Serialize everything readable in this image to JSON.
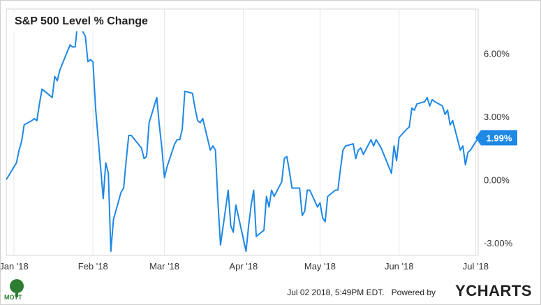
{
  "chart_data": {
    "type": "line",
    "title": "S&P 500 Level % Change",
    "ytick_labels": [
      "6.00%",
      "3.00%",
      "0.00%",
      "-3.00%"
    ],
    "yticks": [
      6,
      3,
      0,
      -3
    ],
    "ylim": [
      -3.6,
      8.1
    ],
    "xtick_labels": [
      "Jan '18",
      "Feb '18",
      "Mar '18",
      "Apr '18",
      "May '18",
      "Jun '18",
      "Jul '18"
    ],
    "xticks": [
      "2018-01-01",
      "2018-02-01",
      "2018-03-01",
      "2018-04-01",
      "2018-05-01",
      "2018-06-01",
      "2018-07-01"
    ],
    "x_range": [
      "2017-12-29",
      "2018-07-02"
    ],
    "last_value_label": "1.99%",
    "line_color": "#1e88e5",
    "grid": "vertical",
    "series": [
      {
        "points": [
          [
            "2017-12-29",
            0.0
          ],
          [
            "2018-01-02",
            0.8
          ],
          [
            "2018-01-03",
            1.4
          ],
          [
            "2018-01-04",
            1.8
          ],
          [
            "2018-01-05",
            2.6
          ],
          [
            "2018-01-08",
            2.8
          ],
          [
            "2018-01-09",
            2.9
          ],
          [
            "2018-01-10",
            2.8
          ],
          [
            "2018-01-11",
            3.6
          ],
          [
            "2018-01-12",
            4.3
          ],
          [
            "2018-01-16",
            3.9
          ],
          [
            "2018-01-17",
            4.9
          ],
          [
            "2018-01-18",
            4.7
          ],
          [
            "2018-01-19",
            5.2
          ],
          [
            "2018-01-22",
            6.1
          ],
          [
            "2018-01-23",
            6.4
          ],
          [
            "2018-01-24",
            6.3
          ],
          [
            "2018-01-25",
            6.3
          ],
          [
            "2018-01-26",
            7.5
          ],
          [
            "2018-01-29",
            6.8
          ],
          [
            "2018-01-30",
            5.6
          ],
          [
            "2018-01-31",
            5.7
          ],
          [
            "2018-02-01",
            5.6
          ],
          [
            "2018-02-02",
            3.4
          ],
          [
            "2018-02-05",
            -0.9
          ],
          [
            "2018-02-06",
            0.8
          ],
          [
            "2018-02-07",
            0.3
          ],
          [
            "2018-02-08",
            -3.4
          ],
          [
            "2018-02-09",
            -1.9
          ],
          [
            "2018-02-12",
            -0.6
          ],
          [
            "2018-02-13",
            -0.4
          ],
          [
            "2018-02-14",
            0.9
          ],
          [
            "2018-02-15",
            2.1
          ],
          [
            "2018-02-16",
            2.1
          ],
          [
            "2018-02-20",
            1.5
          ],
          [
            "2018-02-21",
            1.0
          ],
          [
            "2018-02-22",
            1.1
          ],
          [
            "2018-02-23",
            2.7
          ],
          [
            "2018-02-26",
            3.9
          ],
          [
            "2018-02-27",
            2.6
          ],
          [
            "2018-02-28",
            1.5
          ],
          [
            "2018-03-01",
            0.1
          ],
          [
            "2018-03-02",
            0.6
          ],
          [
            "2018-03-05",
            1.7
          ],
          [
            "2018-03-06",
            1.9
          ],
          [
            "2018-03-07",
            1.9
          ],
          [
            "2018-03-08",
            2.4
          ],
          [
            "2018-03-09",
            4.2
          ],
          [
            "2018-03-12",
            4.1
          ],
          [
            "2018-03-13",
            3.4
          ],
          [
            "2018-03-14",
            2.8
          ],
          [
            "2018-03-15",
            2.7
          ],
          [
            "2018-03-16",
            2.9
          ],
          [
            "2018-03-19",
            1.4
          ],
          [
            "2018-03-20",
            1.6
          ],
          [
            "2018-03-21",
            1.4
          ],
          [
            "2018-03-22",
            -1.1
          ],
          [
            "2018-03-23",
            -3.1
          ],
          [
            "2018-03-26",
            -0.5
          ],
          [
            "2018-03-27",
            -2.2
          ],
          [
            "2018-03-28",
            -2.5
          ],
          [
            "2018-03-29",
            -1.2
          ],
          [
            "2018-04-02",
            -3.4
          ],
          [
            "2018-04-03",
            -2.2
          ],
          [
            "2018-04-04",
            -1.2
          ],
          [
            "2018-04-05",
            -0.5
          ],
          [
            "2018-04-06",
            -2.7
          ],
          [
            "2018-04-09",
            -2.4
          ],
          [
            "2018-04-10",
            -0.8
          ],
          [
            "2018-04-11",
            -1.3
          ],
          [
            "2018-04-12",
            -0.5
          ],
          [
            "2018-04-13",
            -0.8
          ],
          [
            "2018-04-16",
            -0.1
          ],
          [
            "2018-04-17",
            1.0
          ],
          [
            "2018-04-18",
            1.1
          ],
          [
            "2018-04-19",
            0.4
          ],
          [
            "2018-04-20",
            -0.4
          ],
          [
            "2018-04-23",
            -0.4
          ],
          [
            "2018-04-24",
            -1.7
          ],
          [
            "2018-04-25",
            -1.5
          ],
          [
            "2018-04-26",
            -0.5
          ],
          [
            "2018-04-27",
            -0.5
          ],
          [
            "2018-04-30",
            -1.3
          ],
          [
            "2018-05-01",
            -1.1
          ],
          [
            "2018-05-02",
            -1.8
          ],
          [
            "2018-05-03",
            -2.0
          ],
          [
            "2018-05-04",
            -0.8
          ],
          [
            "2018-05-07",
            -0.5
          ],
          [
            "2018-05-08",
            -0.5
          ],
          [
            "2018-05-09",
            0.5
          ],
          [
            "2018-05-10",
            1.4
          ],
          [
            "2018-05-11",
            1.6
          ],
          [
            "2018-05-14",
            1.7
          ],
          [
            "2018-05-15",
            1.0
          ],
          [
            "2018-05-16",
            1.4
          ],
          [
            "2018-05-17",
            1.5
          ],
          [
            "2018-05-18",
            1.2
          ],
          [
            "2018-05-21",
            1.9
          ],
          [
            "2018-05-22",
            1.6
          ],
          [
            "2018-05-23",
            1.9
          ],
          [
            "2018-05-24",
            1.7
          ],
          [
            "2018-05-25",
            1.5
          ],
          [
            "2018-05-29",
            0.3
          ],
          [
            "2018-05-30",
            1.6
          ],
          [
            "2018-05-31",
            0.9
          ],
          [
            "2018-06-01",
            2.0
          ],
          [
            "2018-06-04",
            2.4
          ],
          [
            "2018-06-05",
            2.5
          ],
          [
            "2018-06-06",
            3.4
          ],
          [
            "2018-06-07",
            3.3
          ],
          [
            "2018-06-08",
            3.6
          ],
          [
            "2018-06-11",
            3.7
          ],
          [
            "2018-06-12",
            3.9
          ],
          [
            "2018-06-13",
            3.5
          ],
          [
            "2018-06-14",
            3.8
          ],
          [
            "2018-06-15",
            3.7
          ],
          [
            "2018-06-18",
            3.5
          ],
          [
            "2018-06-19",
            3.1
          ],
          [
            "2018-06-20",
            3.3
          ],
          [
            "2018-06-21",
            2.6
          ],
          [
            "2018-06-22",
            2.8
          ],
          [
            "2018-06-25",
            1.4
          ],
          [
            "2018-06-26",
            1.6
          ],
          [
            "2018-06-27",
            0.7
          ],
          [
            "2018-06-28",
            1.3
          ],
          [
            "2018-06-29",
            1.4
          ],
          [
            "2018-07-02",
            1.99
          ]
        ]
      }
    ]
  },
  "footer": {
    "timestamp": "Jul 02 2018, 5:49PM EDT.",
    "powered_by": "Powered by",
    "brand_y": "Y",
    "brand_rest": "CHARTS",
    "logo_text": "MOTT"
  }
}
